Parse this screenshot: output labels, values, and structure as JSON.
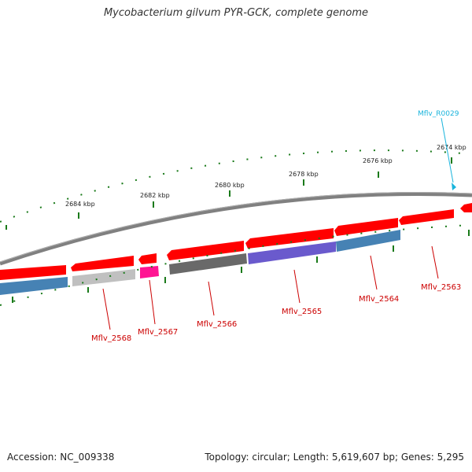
{
  "title": "Mycobacterium gilvum PYR-GCK, complete genome",
  "accession": "Accession: NC_009338",
  "topology": "Topology: circular; Length: 5,619,607 bp; Genes: 5,295",
  "scale_labels": [
    "2684 kbp",
    "2682 kbp",
    "2680 kbp",
    "2678 kbp",
    "2676 kbp",
    "2674 kbp"
  ],
  "gene_labels": [
    "Mflv_2568",
    "Mflv_2567",
    "Mflv_2566",
    "Mflv_2565",
    "Mflv_2564",
    "Mflv_2563"
  ],
  "rna_label": "Mflv_R0029",
  "colors": {
    "backbone": "#808080",
    "cds_forward": "#ff0000",
    "gene_label": "#cc0000",
    "rna": "#19b4dc",
    "tick": "#1a7a1a",
    "track_blue": "#4682b4",
    "track_silver": "#c0c0c0",
    "track_magenta": "#ff1493",
    "track_dark": "#696969",
    "track_purple": "#6a5acd"
  }
}
